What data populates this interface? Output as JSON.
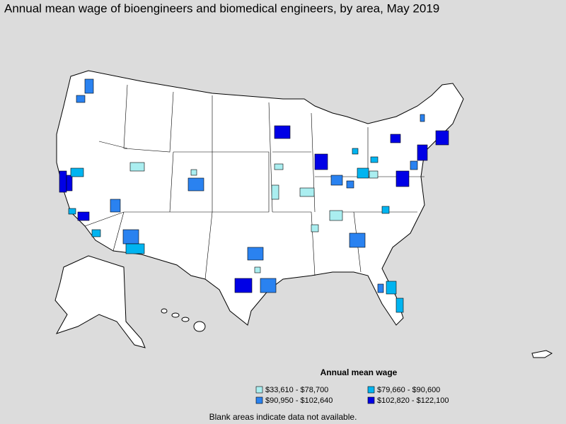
{
  "title": "Annual mean wage of bioengineers and biomedical engineers, by area, May 2019",
  "legend": {
    "title": "Annual mean wage",
    "items": [
      {
        "label": "$33,610 - $78,700",
        "color": "#aaeef0"
      },
      {
        "label": "$79,660 - $90,600",
        "color": "#00b4f0"
      },
      {
        "label": "$90,950 - $102,640",
        "color": "#2a82f0"
      },
      {
        "label": "$102,820 - $122,100",
        "color": "#0000e6"
      }
    ]
  },
  "note": "Blank areas indicate data not available."
}
